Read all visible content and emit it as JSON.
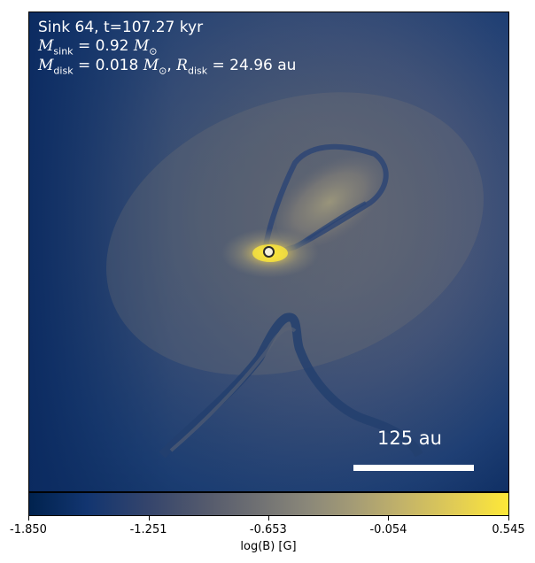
{
  "annotations": {
    "line1": "Sink 64, t=107.27 kyr",
    "sink_mass_value": "= 0.92",
    "disk_mass_value": "= 0.018",
    "disk_radius_value": "= 24.96 au",
    "M": "M",
    "R": "R",
    "sub_sink": "sink",
    "sub_disk": "disk",
    "sun_symbol": "M",
    "sun_sub": "⊙"
  },
  "scale_bar": {
    "label": "125 au"
  },
  "colorbar": {
    "label": "log(B) [G]",
    "ticks": [
      "-1.850",
      "-1.251",
      "-0.653",
      "-0.054",
      "0.545"
    ],
    "range": [
      -1.85,
      0.545
    ],
    "colormap": "cividis"
  },
  "colors": {
    "background_dark": "#0b2a5e",
    "background_mid": "#4f5b78",
    "highlight": "#fee838"
  }
}
